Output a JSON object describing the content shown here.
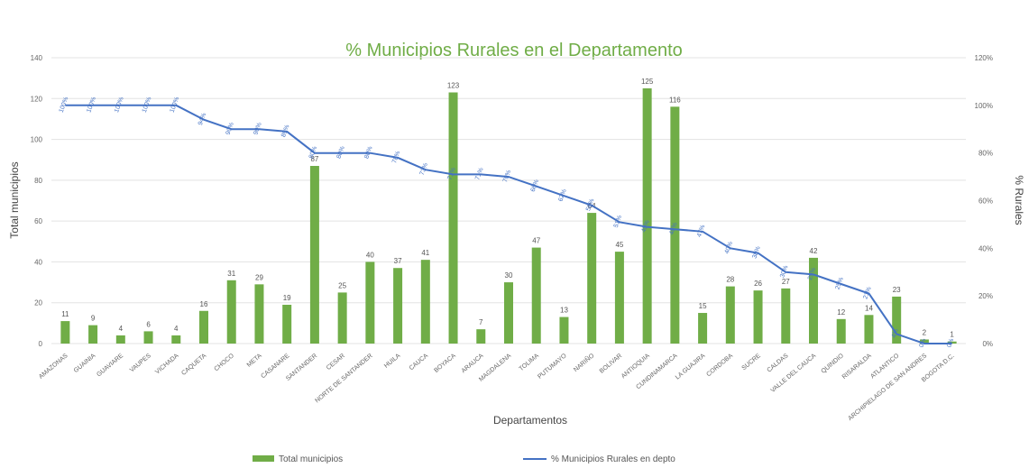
{
  "chart_data": {
    "type": "bar",
    "title": "% Municipios Rurales en el Departamento",
    "xlabel": "Departamentos",
    "ylabel": "Total municipios",
    "y2label": "% Rurales",
    "ylim": [
      0,
      140
    ],
    "y2lim": [
      0,
      1.2
    ],
    "yticks": [
      "0",
      "20",
      "40",
      "60",
      "80",
      "100",
      "120",
      "140"
    ],
    "y2ticks": [
      "0%",
      "20%",
      "40%",
      "60%",
      "80%",
      "100%",
      "120%"
    ],
    "grid": true,
    "legend_position": "bottom",
    "colors": {
      "bars": "#70ad47",
      "line": "#4472c4",
      "title": "#70ad47"
    },
    "categories": [
      "AMAZONAS",
      "GUAINIA",
      "GUAVIARE",
      "VAUPES",
      "VICHADA",
      "CAQUETA",
      "CHOCO",
      "META",
      "CASANARE",
      "SANTANDER",
      "CESAR",
      "NORTE DE SANTANDER",
      "HUILA",
      "CAUCA",
      "BOYACA",
      "ARAUCA",
      "MAGDALENA",
      "TOLIMA",
      "PUTUMAYO",
      "NARIÑO",
      "BOLIVAR",
      "ANTIOQUIA",
      "CUNDINAMARCA",
      "LA GUAJIRA",
      "CORDOBA",
      "SUCRE",
      "CALDAS",
      "VALLE DEL CAUCA",
      "QUINDIO",
      "RISARALDA",
      "ATLANTICO",
      "ARCHIPIELAGO DE SAN ANDRES",
      "BOGOTA D.C."
    ],
    "series": [
      {
        "name": "Total municipios",
        "type": "bar",
        "axis": "left",
        "values": [
          11,
          9,
          4,
          6,
          4,
          16,
          31,
          29,
          19,
          87,
          25,
          40,
          37,
          41,
          123,
          7,
          30,
          47,
          13,
          64,
          45,
          125,
          116,
          15,
          28,
          26,
          27,
          42,
          12,
          14,
          23,
          2,
          1
        ],
        "data_labels": [
          "11",
          "9",
          "4",
          "6",
          "4",
          "16",
          "31",
          "29",
          "19",
          "87",
          "25",
          "40",
          "37",
          "41",
          "123",
          "7",
          "30",
          "47",
          "13",
          "64",
          "45",
          "125",
          "116",
          "15",
          "28",
          "26",
          "27",
          "42",
          "12",
          "14",
          "23",
          "2",
          "1"
        ]
      },
      {
        "name": "% Municipios Rurales en depto",
        "type": "line",
        "axis": "right",
        "values": [
          1.0,
          1.0,
          1.0,
          1.0,
          1.0,
          0.94,
          0.9,
          0.9,
          0.89,
          0.8,
          0.8,
          0.8,
          0.78,
          0.73,
          0.71,
          0.71,
          0.7,
          0.66,
          0.62,
          0.58,
          0.51,
          0.49,
          0.48,
          0.47,
          0.4,
          0.38,
          0.3,
          0.29,
          0.25,
          0.21,
          0.04,
          0.0,
          0.0
        ],
        "data_labels": [
          "100%",
          "100%",
          "100%",
          "100%",
          "100%",
          "94%",
          "90%",
          "90%",
          "89%",
          "80%",
          "80%",
          "80%",
          "78%",
          "73%",
          "71%",
          "71%",
          "70%",
          "66%",
          "62%",
          "58%",
          "51%",
          "49%",
          "48%",
          "47%",
          "40%",
          "38%",
          "30%",
          "29%",
          "25%",
          "21%",
          "4%",
          "0%",
          "0%"
        ]
      }
    ]
  }
}
